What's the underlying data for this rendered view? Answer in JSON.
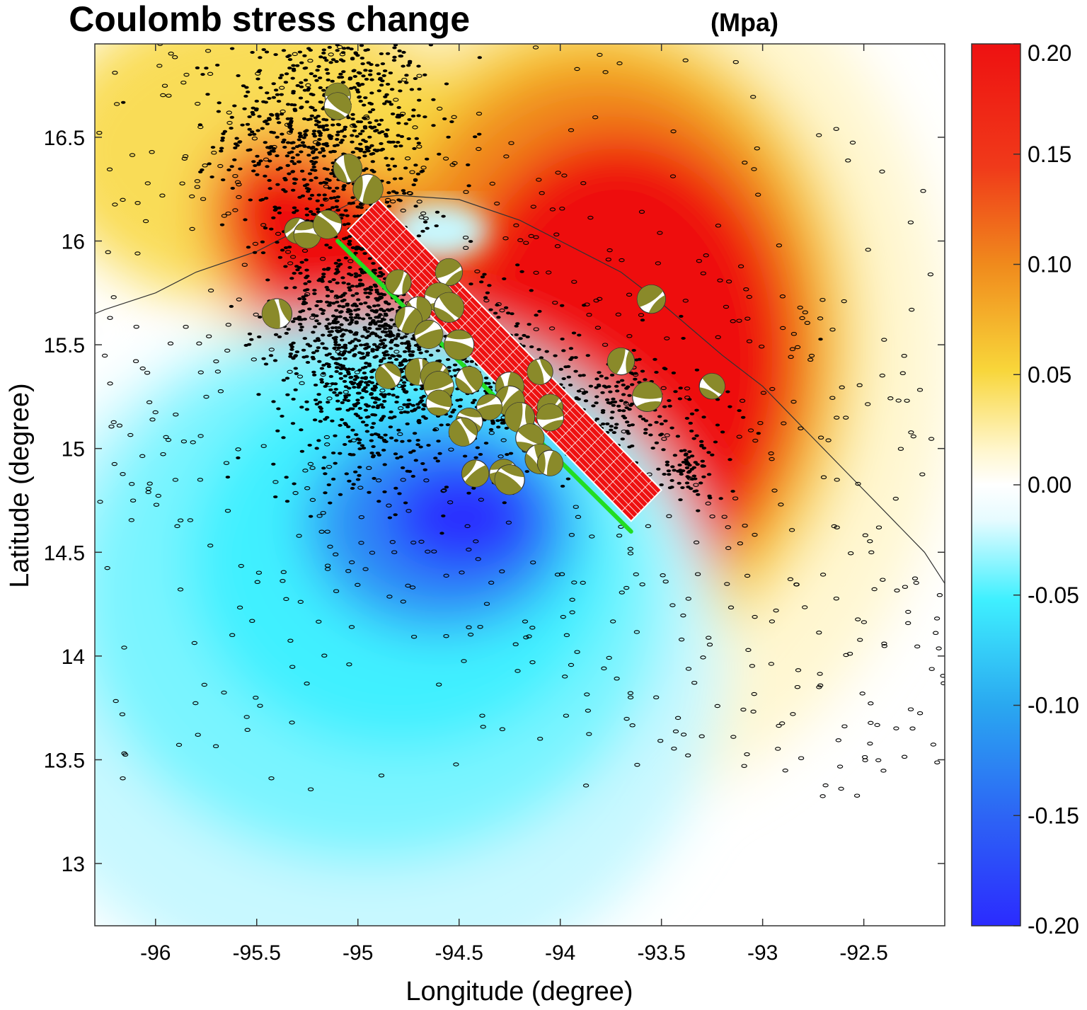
{
  "chart_data": {
    "type": "heatmap",
    "title": "Coulomb stress change",
    "title_unit": "(Mpa)",
    "xlabel": "Longitude (degree)",
    "ylabel": "Latitude  (degree)",
    "xlim": [
      -96.3,
      -92.1
    ],
    "ylim": [
      12.7,
      16.95
    ],
    "x_ticks": [
      -96,
      -95.5,
      -95,
      -94.5,
      -94,
      -93.5,
      -93,
      -92.5
    ],
    "x_tick_labels": [
      "-96",
      "-95.5",
      "-95",
      "-94.5",
      "-94",
      "-93.5",
      "-93",
      "-92.5"
    ],
    "y_ticks": [
      13,
      13.5,
      14,
      14.5,
      15,
      15.5,
      16,
      16.5
    ],
    "y_tick_labels": [
      "13",
      "13.5",
      "14",
      "14.5",
      "15",
      "15.5",
      "16",
      "16.5"
    ],
    "colorbar": {
      "min": -0.2,
      "max": 0.2,
      "ticks": [
        0.2,
        0.15,
        0.1,
        0.05,
        0.0,
        -0.05,
        -0.1,
        -0.15,
        -0.2
      ],
      "tick_labels": [
        "0.20",
        "0.15",
        "0.10",
        "0.05",
        "0.00",
        "-0.05",
        "-0.10",
        "-0.15",
        "-0.20"
      ],
      "colors": {
        "neg_max": "#2b2bff",
        "neg_mid": "#3ff0ff",
        "zero": "#ffffff",
        "pos_low": "#fff6cc",
        "pos_mid": "#f8d63a",
        "pos_high": "#f08a1c",
        "pos_max": "#ee1111"
      }
    },
    "stress_lobes": [
      {
        "lon": -93.75,
        "lat": 15.55,
        "value": 0.2
      },
      {
        "lon": -94.45,
        "lat": 14.6,
        "value": -0.2
      }
    ],
    "fault_trace": {
      "start": [
        -95.1,
        16.0
      ],
      "end": [
        -93.65,
        14.6
      ],
      "color": "#22dd22"
    },
    "rupture_plane": {
      "corners": [
        [
          -95.05,
          16.05
        ],
        [
          -94.9,
          16.2
        ],
        [
          -93.5,
          14.8
        ],
        [
          -93.65,
          14.65
        ]
      ],
      "color": "#ee1111"
    },
    "coastline": [
      [
        -96.3,
        15.65
      ],
      [
        -96.25,
        15.67
      ],
      [
        -96.0,
        15.75
      ],
      [
        -95.8,
        15.85
      ],
      [
        -95.5,
        15.95
      ],
      [
        -95.2,
        16.1
      ],
      [
        -95.0,
        16.2
      ],
      [
        -94.8,
        16.22
      ],
      [
        -94.5,
        16.2
      ],
      [
        -94.2,
        16.1
      ],
      [
        -93.9,
        15.95
      ],
      [
        -93.7,
        15.85
      ],
      [
        -93.5,
        15.7
      ],
      [
        -93.2,
        15.45
      ],
      [
        -93.0,
        15.3
      ],
      [
        -92.8,
        15.1
      ],
      [
        -92.6,
        14.9
      ],
      [
        -92.4,
        14.7
      ],
      [
        -92.2,
        14.5
      ],
      [
        -92.1,
        14.35
      ]
    ],
    "seismicity": {
      "clusters": [
        {
          "lon": -95.15,
          "lat": 16.55,
          "spread_lon": 0.25,
          "spread_lat": 0.25,
          "count": 700
        },
        {
          "lon": -95.0,
          "lat": 15.6,
          "spread_lon": 0.2,
          "spread_lat": 0.35,
          "count": 900
        },
        {
          "lon": -94.6,
          "lat": 15.4,
          "spread_lon": 0.25,
          "spread_lat": 0.25,
          "count": 500
        },
        {
          "lon": -93.8,
          "lat": 15.2,
          "spread_lon": 0.3,
          "spread_lat": 0.15,
          "count": 280
        },
        {
          "lon": -93.35,
          "lat": 14.9,
          "spread_lon": 0.08,
          "spread_lat": 0.08,
          "count": 70
        }
      ],
      "background_count": 850
    },
    "focal_mechanisms": [
      {
        "lon": -95.1,
        "lat": 16.7
      },
      {
        "lon": -95.1,
        "lat": 16.65
      },
      {
        "lon": -95.05,
        "lat": 16.35
      },
      {
        "lon": -94.95,
        "lat": 16.25
      },
      {
        "lon": -95.3,
        "lat": 16.05
      },
      {
        "lon": -95.25,
        "lat": 16.03
      },
      {
        "lon": -95.15,
        "lat": 16.08
      },
      {
        "lon": -95.4,
        "lat": 15.65
      },
      {
        "lon": -94.8,
        "lat": 15.8
      },
      {
        "lon": -94.55,
        "lat": 15.85
      },
      {
        "lon": -94.6,
        "lat": 15.73
      },
      {
        "lon": -94.55,
        "lat": 15.68
      },
      {
        "lon": -94.7,
        "lat": 15.67
      },
      {
        "lon": -94.75,
        "lat": 15.62
      },
      {
        "lon": -94.65,
        "lat": 15.55
      },
      {
        "lon": -94.5,
        "lat": 15.5
      },
      {
        "lon": -94.85,
        "lat": 15.35
      },
      {
        "lon": -94.7,
        "lat": 15.37
      },
      {
        "lon": -94.62,
        "lat": 15.35
      },
      {
        "lon": -94.6,
        "lat": 15.3
      },
      {
        "lon": -94.6,
        "lat": 15.22
      },
      {
        "lon": -94.45,
        "lat": 15.33
      },
      {
        "lon": -94.25,
        "lat": 15.3
      },
      {
        "lon": -94.25,
        "lat": 15.23
      },
      {
        "lon": -94.35,
        "lat": 15.2
      },
      {
        "lon": -94.45,
        "lat": 15.13
      },
      {
        "lon": -94.48,
        "lat": 15.08
      },
      {
        "lon": -94.2,
        "lat": 15.15
      },
      {
        "lon": -94.05,
        "lat": 15.2
      },
      {
        "lon": -94.05,
        "lat": 15.15
      },
      {
        "lon": -94.15,
        "lat": 15.05
      },
      {
        "lon": -94.1,
        "lat": 14.95
      },
      {
        "lon": -94.05,
        "lat": 14.93
      },
      {
        "lon": -94.42,
        "lat": 14.88
      },
      {
        "lon": -94.28,
        "lat": 14.88
      },
      {
        "lon": -94.25,
        "lat": 14.85
      },
      {
        "lon": -94.1,
        "lat": 15.37
      },
      {
        "lon": -93.7,
        "lat": 15.42
      },
      {
        "lon": -93.55,
        "lat": 15.72
      },
      {
        "lon": -93.57,
        "lat": 15.25
      },
      {
        "lon": -93.25,
        "lat": 15.3
      }
    ],
    "grid": false
  }
}
